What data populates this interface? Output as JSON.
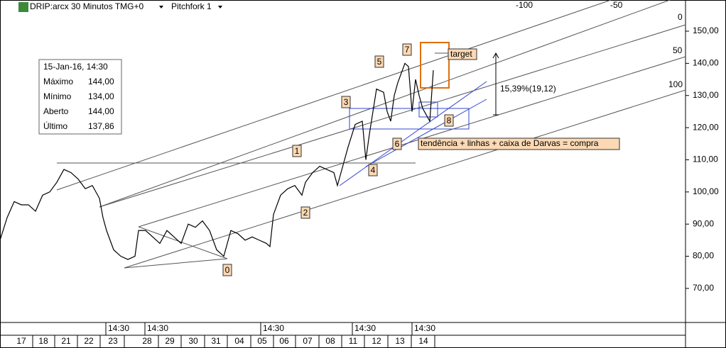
{
  "chart_data": {
    "type": "line",
    "title": "DRIP:arcx 30 Minutos TMG+0",
    "study": "Pitchfork 1",
    "info_box": {
      "date": "15-Jan-16, 14:30",
      "rows": [
        [
          "Máximo",
          "144,00"
        ],
        [
          "Mínimo",
          "134,00"
        ],
        [
          "Aberto",
          "144,00"
        ],
        [
          "Último",
          "137,86"
        ]
      ]
    },
    "annotations": {
      "waves": [
        "0",
        "1",
        "2",
        "3",
        "4",
        "5",
        "6",
        "7",
        "8"
      ],
      "target": "target",
      "measure": "15,39%(19,12)",
      "note": "tendência + linhas + caixa de Darvas = compra",
      "fork_levels": [
        "-100",
        "-50",
        "0",
        "50",
        "100"
      ]
    },
    "x": [
      0,
      2,
      4,
      6,
      8,
      10,
      12,
      14,
      16,
      18,
      20,
      22,
      24,
      26,
      28,
      29,
      30,
      32,
      34,
      36,
      38,
      39,
      41,
      43,
      45,
      47,
      49,
      51,
      53,
      55,
      57,
      59,
      61,
      63,
      65,
      67,
      69,
      71,
      73,
      75,
      76,
      77,
      79,
      81,
      83,
      85,
      86,
      88,
      90,
      92,
      94,
      95,
      96,
      98,
      100,
      102,
      103,
      104,
      106,
      108,
      109,
      110,
      111,
      112,
      113,
      114,
      115,
      116,
      117,
      118,
      119,
      120,
      121,
      122
    ],
    "series": [
      {
        "color": "#000000",
        "values": [
          85,
          92,
          97,
          96,
          96,
          94,
          99,
          100,
          103,
          107,
          106,
          104,
          101,
          102,
          98,
          92,
          88,
          82,
          80,
          79,
          80,
          88,
          88,
          86,
          84,
          88,
          86,
          84,
          90,
          89,
          91,
          88,
          82,
          80,
          88,
          87,
          85,
          86,
          85,
          84,
          83,
          93,
          99,
          101,
          102,
          99,
          103,
          106,
          108,
          107,
          106,
          102,
          106,
          114,
          121,
          122,
          110,
          118,
          132,
          131,
          125,
          122,
          130,
          134,
          137,
          140,
          139,
          125,
          135,
          130,
          126,
          124,
          122,
          137.86
        ]
      }
    ],
    "xlim": [
      0,
      193
    ],
    "ylim": [
      59.4,
      159.7
    ],
    "yticks": [
      {
        "value": 70,
        "label": "70,00"
      },
      {
        "value": 80,
        "label": "80,00"
      },
      {
        "value": 90,
        "label": "90,00"
      },
      {
        "value": 100,
        "label": "100,00"
      },
      {
        "value": 110,
        "label": "110,00"
      },
      {
        "value": 120,
        "label": "120,00"
      },
      {
        "value": 130,
        "label": "130,00"
      },
      {
        "value": 140,
        "label": "140,00"
      },
      {
        "value": 150,
        "label": "150,00"
      }
    ],
    "xticks": [
      {
        "value": 6,
        "label": "17"
      },
      {
        "value": 12.2,
        "label": "18"
      },
      {
        "value": 18.6,
        "label": "21"
      },
      {
        "value": 25,
        "label": "22"
      },
      {
        "value": 31.8,
        "label": "23"
      },
      {
        "value": 41.4,
        "label": "28"
      },
      {
        "value": 47.8,
        "label": "29"
      },
      {
        "value": 54.4,
        "label": "30"
      },
      {
        "value": 60.8,
        "label": "31"
      },
      {
        "value": 67.4,
        "label": "04"
      },
      {
        "value": 73.8,
        "label": "05"
      },
      {
        "value": 80,
        "label": "06"
      },
      {
        "value": 86.6,
        "label": "07"
      },
      {
        "value": 93,
        "label": "08"
      },
      {
        "value": 99.4,
        "label": "11"
      },
      {
        "value": 106,
        "label": "12"
      },
      {
        "value": 112.6,
        "label": "13"
      },
      {
        "value": 119.2,
        "label": "14"
      }
    ],
    "time_ticks": [
      {
        "value": 33.4,
        "label": "14:30"
      },
      {
        "value": 44.4,
        "label": "14:30"
      },
      {
        "value": 77,
        "label": "14:30"
      },
      {
        "value": 102.8,
        "label": "14:30"
      },
      {
        "value": 119.6,
        "label": "14:30"
      }
    ]
  }
}
